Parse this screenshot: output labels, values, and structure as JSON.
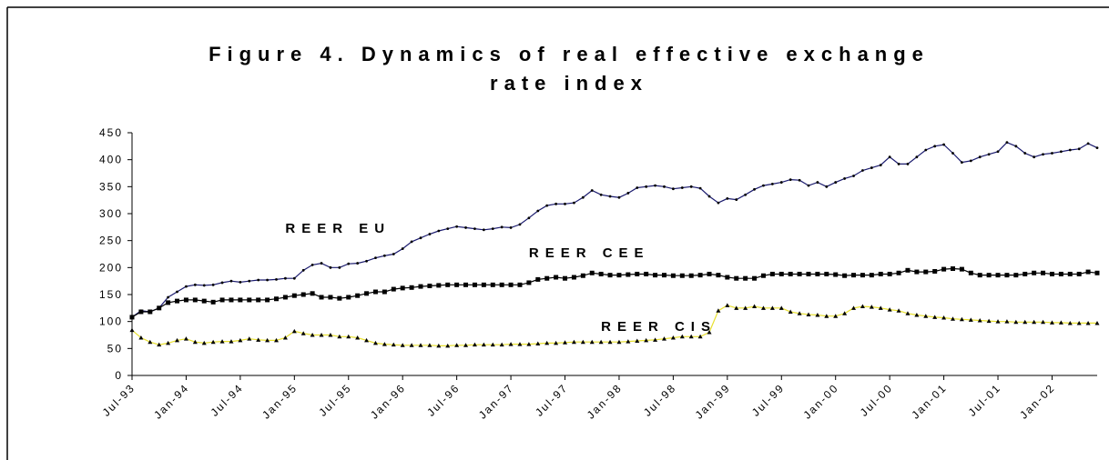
{
  "chart_data": {
    "type": "line",
    "title": "Figure 4. Dynamics of real effective exchange rate index",
    "categories": [
      "Jul-93",
      null,
      null,
      null,
      null,
      null,
      "Jan-94",
      null,
      null,
      null,
      null,
      null,
      "Jul-94",
      null,
      null,
      null,
      null,
      null,
      "Jan-95",
      null,
      null,
      null,
      null,
      null,
      "Jul-95",
      null,
      null,
      null,
      null,
      null,
      "Jan-96",
      null,
      null,
      null,
      null,
      null,
      "Jul-96",
      null,
      null,
      null,
      null,
      null,
      "Jan-97",
      null,
      null,
      null,
      null,
      null,
      "Jul-97",
      null,
      null,
      null,
      null,
      null,
      "Jan-98",
      null,
      null,
      null,
      null,
      null,
      "Jul-98",
      null,
      null,
      null,
      null,
      null,
      "Jan-99",
      null,
      null,
      null,
      null,
      null,
      "Jul-99",
      null,
      null,
      null,
      null,
      null,
      "Jan-00",
      null,
      null,
      null,
      null,
      null,
      "Jul-00",
      null,
      null,
      null,
      null,
      null,
      "Jan-01",
      null,
      null,
      null,
      null,
      null,
      "Jul-01",
      null,
      null,
      null,
      null,
      null,
      "Jan-02",
      null,
      null,
      null,
      null,
      null
    ],
    "series": [
      {
        "name": "REER EU",
        "color": "#1a1a6e",
        "marker": "dot",
        "label_at": 17,
        "values": [
          108,
          120,
          118,
          125,
          145,
          155,
          165,
          168,
          167,
          168,
          172,
          175,
          173,
          175,
          177,
          177,
          178,
          180,
          180,
          195,
          205,
          208,
          200,
          200,
          207,
          208,
          212,
          218,
          222,
          225,
          235,
          248,
          255,
          262,
          268,
          272,
          276,
          274,
          272,
          270,
          272,
          275,
          274,
          280,
          292,
          305,
          315,
          318,
          318,
          320,
          330,
          343,
          335,
          332,
          330,
          338,
          348,
          350,
          352,
          350,
          346,
          348,
          350,
          347,
          332,
          320,
          328,
          326,
          335,
          345,
          352,
          355,
          358,
          363,
          362,
          352,
          358,
          350,
          358,
          365,
          370,
          380,
          385,
          390,
          405,
          392,
          392,
          405,
          418,
          425,
          428,
          412,
          395,
          398,
          405,
          410,
          415,
          432,
          425,
          412,
          405,
          410,
          412,
          415,
          418,
          420,
          430,
          422
        ]
      },
      {
        "name": "REER CEE",
        "color": "#000000",
        "marker": "square",
        "label_at": 44,
        "values": [
          108,
          118,
          118,
          125,
          135,
          138,
          140,
          140,
          138,
          136,
          140,
          140,
          140,
          140,
          140,
          140,
          142,
          145,
          148,
          150,
          152,
          145,
          145,
          143,
          145,
          148,
          152,
          155,
          155,
          160,
          162,
          163,
          165,
          166,
          167,
          168,
          168,
          168,
          168,
          168,
          168,
          168,
          168,
          168,
          172,
          178,
          180,
          182,
          180,
          182,
          185,
          190,
          188,
          186,
          186,
          187,
          188,
          188,
          186,
          186,
          185,
          185,
          185,
          186,
          188,
          186,
          182,
          180,
          180,
          180,
          185,
          188,
          188,
          188,
          188,
          188,
          188,
          188,
          187,
          185,
          186,
          186,
          186,
          188,
          188,
          190,
          195,
          192,
          192,
          193,
          197,
          198,
          197,
          190,
          186,
          186,
          186,
          186,
          186,
          188,
          190,
          190,
          188,
          188,
          188,
          188,
          192,
          190
        ]
      },
      {
        "name": "REER CIS",
        "color": "#e8e030",
        "marker": "triangle",
        "label_at": 52,
        "values": [
          84,
          70,
          62,
          57,
          60,
          65,
          68,
          62,
          60,
          62,
          63,
          63,
          65,
          68,
          66,
          65,
          65,
          70,
          82,
          78,
          75,
          75,
          75,
          72,
          72,
          70,
          65,
          60,
          58,
          57,
          56,
          56,
          56,
          56,
          55,
          55,
          56,
          56,
          57,
          57,
          57,
          57,
          58,
          58,
          58,
          59,
          60,
          60,
          61,
          62,
          62,
          62,
          62,
          62,
          62,
          63,
          64,
          65,
          66,
          68,
          70,
          72,
          72,
          72,
          80,
          120,
          130,
          125,
          125,
          128,
          125,
          125,
          125,
          118,
          115,
          113,
          112,
          110,
          110,
          115,
          125,
          128,
          127,
          125,
          122,
          120,
          115,
          112,
          110,
          108,
          107,
          105,
          104,
          103,
          102,
          101,
          100,
          100,
          99,
          99,
          99,
          99,
          98,
          98,
          97,
          97,
          97,
          97
        ]
      }
    ],
    "ylim": [
      0,
      450
    ],
    "yticks": [
      0,
      50,
      100,
      150,
      200,
      250,
      300,
      350,
      400,
      450
    ]
  }
}
